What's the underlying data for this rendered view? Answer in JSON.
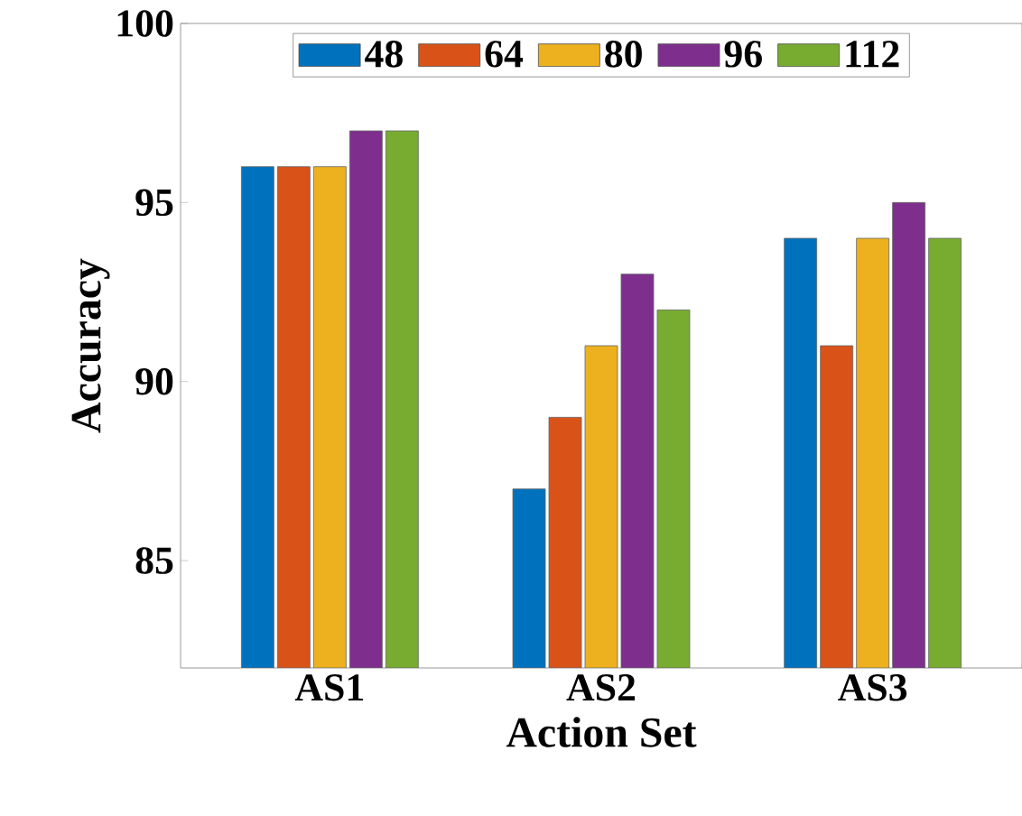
{
  "chart_data": {
    "type": "bar",
    "xlabel": "Action Set",
    "ylabel": "Accuracy",
    "categories": [
      "AS1",
      "AS2",
      "AS3"
    ],
    "series": [
      {
        "name": "48",
        "color": "#0072bd",
        "values": [
          96,
          87,
          94
        ]
      },
      {
        "name": "64",
        "color": "#d95319",
        "values": [
          96,
          89,
          91
        ]
      },
      {
        "name": "80",
        "color": "#edb120",
        "values": [
          96,
          91,
          94
        ]
      },
      {
        "name": "96",
        "color": "#7e2f8e",
        "values": [
          97,
          93,
          95
        ]
      },
      {
        "name": "112",
        "color": "#77ac30",
        "values": [
          97,
          92,
          94
        ]
      }
    ],
    "ylim": [
      82,
      100
    ],
    "yticks": [
      85,
      90,
      95,
      100
    ],
    "legend": "top",
    "grid": false
  }
}
